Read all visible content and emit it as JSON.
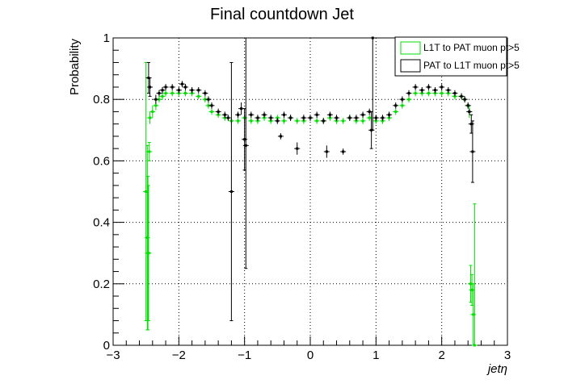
{
  "chart_data": {
    "type": "scatter",
    "title": "Final countdown Jet",
    "xlabel": "jetη",
    "ylabel": "Probability",
    "xlim": [
      -3,
      3
    ],
    "ylim": [
      0,
      1
    ],
    "x_ticks": [
      "−3",
      "−2",
      "−1",
      "0",
      "1",
      "2",
      "3"
    ],
    "y_ticks": [
      "0",
      "0.2",
      "0.4",
      "0.6",
      "0.8",
      "1"
    ],
    "grid": true,
    "legend_position": "top-right",
    "series": [
      {
        "name": "L1T to PAT muon pt>5",
        "color": "#00dd00",
        "points": [
          [
            -2.5,
            0.5,
            0.42
          ],
          [
            -2.48,
            0.35,
            0.3
          ],
          [
            -2.47,
            0.3,
            0.25
          ],
          [
            -2.46,
            0.3,
            0.22
          ],
          [
            -2.45,
            0.63,
            0.03
          ],
          [
            -2.44,
            0.74,
            0.02
          ],
          [
            -2.4,
            0.76,
            0.02
          ],
          [
            -2.35,
            0.78,
            0.015
          ],
          [
            -2.3,
            0.8,
            0.01
          ],
          [
            -2.25,
            0.81,
            0.01
          ],
          [
            -2.2,
            0.82,
            0.01
          ],
          [
            -2.1,
            0.82,
            0.01
          ],
          [
            -2.0,
            0.82,
            0.01
          ],
          [
            -1.9,
            0.82,
            0.01
          ],
          [
            -1.8,
            0.82,
            0.01
          ],
          [
            -1.7,
            0.81,
            0.01
          ],
          [
            -1.6,
            0.8,
            0.01
          ],
          [
            -1.55,
            0.78,
            0.01
          ],
          [
            -1.5,
            0.76,
            0.01
          ],
          [
            -1.4,
            0.75,
            0.01
          ],
          [
            -1.3,
            0.74,
            0.01
          ],
          [
            -1.2,
            0.73,
            0.01
          ],
          [
            -1.1,
            0.73,
            0.01
          ],
          [
            -1.0,
            0.74,
            0.01
          ],
          [
            -0.9,
            0.73,
            0.01
          ],
          [
            -0.8,
            0.73,
            0.01
          ],
          [
            -0.7,
            0.74,
            0.01
          ],
          [
            -0.6,
            0.73,
            0.01
          ],
          [
            -0.5,
            0.74,
            0.01
          ],
          [
            -0.4,
            0.73,
            0.01
          ],
          [
            -0.3,
            0.74,
            0.01
          ],
          [
            -0.2,
            0.73,
            0.01
          ],
          [
            -0.1,
            0.73,
            0.01
          ],
          [
            0.0,
            0.74,
            0.01
          ],
          [
            0.1,
            0.73,
            0.01
          ],
          [
            0.2,
            0.73,
            0.01
          ],
          [
            0.3,
            0.74,
            0.01
          ],
          [
            0.4,
            0.73,
            0.01
          ],
          [
            0.5,
            0.73,
            0.01
          ],
          [
            0.6,
            0.74,
            0.01
          ],
          [
            0.7,
            0.73,
            0.01
          ],
          [
            0.8,
            0.73,
            0.01
          ],
          [
            0.9,
            0.74,
            0.01
          ],
          [
            1.0,
            0.73,
            0.01
          ],
          [
            1.1,
            0.73,
            0.01
          ],
          [
            1.2,
            0.74,
            0.01
          ],
          [
            1.3,
            0.76,
            0.01
          ],
          [
            1.4,
            0.78,
            0.01
          ],
          [
            1.5,
            0.8,
            0.01
          ],
          [
            1.6,
            0.82,
            0.01
          ],
          [
            1.7,
            0.82,
            0.01
          ],
          [
            1.8,
            0.82,
            0.01
          ],
          [
            1.9,
            0.82,
            0.01
          ],
          [
            2.0,
            0.82,
            0.01
          ],
          [
            2.1,
            0.82,
            0.01
          ],
          [
            2.2,
            0.81,
            0.01
          ],
          [
            2.3,
            0.81,
            0.01
          ],
          [
            2.35,
            0.8,
            0.01
          ],
          [
            2.4,
            0.78,
            0.01
          ],
          [
            2.42,
            0.76,
            0.02
          ],
          [
            2.44,
            0.2,
            0.06
          ],
          [
            2.46,
            0.18,
            0.05
          ],
          [
            2.48,
            0.1,
            0.1
          ],
          [
            2.5,
            0.0,
            0.46
          ]
        ]
      },
      {
        "name": "PAT to L1T muon pt>5",
        "color": "#000000",
        "points": [
          [
            -2.46,
            0.87,
            0.05
          ],
          [
            -2.44,
            0.84,
            0.03
          ],
          [
            -2.35,
            0.8,
            0.015
          ],
          [
            -2.3,
            0.82,
            0.01
          ],
          [
            -2.25,
            0.83,
            0.01
          ],
          [
            -2.2,
            0.84,
            0.01
          ],
          [
            -2.1,
            0.84,
            0.01
          ],
          [
            -2.0,
            0.83,
            0.01
          ],
          [
            -1.95,
            0.85,
            0.01
          ],
          [
            -1.9,
            0.84,
            0.01
          ],
          [
            -1.8,
            0.83,
            0.01
          ],
          [
            -1.7,
            0.83,
            0.01
          ],
          [
            -1.6,
            0.82,
            0.01
          ],
          [
            -1.55,
            0.8,
            0.01
          ],
          [
            -1.5,
            0.78,
            0.01
          ],
          [
            -1.4,
            0.76,
            0.01
          ],
          [
            -1.3,
            0.75,
            0.01
          ],
          [
            -1.25,
            0.74,
            0.01
          ],
          [
            -1.2,
            0.5,
            0.42
          ],
          [
            -1.1,
            0.75,
            0.01
          ],
          [
            -1.05,
            0.77,
            0.02
          ],
          [
            -1.0,
            0.67,
            0.1
          ],
          [
            -0.98,
            0.65,
            0.4
          ],
          [
            -0.9,
            0.75,
            0.01
          ],
          [
            -0.8,
            0.74,
            0.01
          ],
          [
            -0.7,
            0.75,
            0.01
          ],
          [
            -0.6,
            0.74,
            0.01
          ],
          [
            -0.5,
            0.73,
            0.01
          ],
          [
            -0.45,
            0.68,
            0.01
          ],
          [
            -0.4,
            0.75,
            0.01
          ],
          [
            -0.3,
            0.74,
            0.01
          ],
          [
            -0.2,
            0.64,
            0.02
          ],
          [
            -0.1,
            0.74,
            0.01
          ],
          [
            0.0,
            0.74,
            0.01
          ],
          [
            0.1,
            0.75,
            0.01
          ],
          [
            0.2,
            0.73,
            0.01
          ],
          [
            0.25,
            0.63,
            0.02
          ],
          [
            0.3,
            0.75,
            0.01
          ],
          [
            0.4,
            0.74,
            0.01
          ],
          [
            0.5,
            0.63,
            0.01
          ],
          [
            0.6,
            0.74,
            0.01
          ],
          [
            0.7,
            0.74,
            0.01
          ],
          [
            0.8,
            0.75,
            0.01
          ],
          [
            0.9,
            0.76,
            0.01
          ],
          [
            0.93,
            0.7,
            0.06
          ],
          [
            0.95,
            1.0,
            0.3
          ],
          [
            1.0,
            0.74,
            0.01
          ],
          [
            1.1,
            0.74,
            0.01
          ],
          [
            1.2,
            0.75,
            0.01
          ],
          [
            1.3,
            0.78,
            0.01
          ],
          [
            1.4,
            0.8,
            0.01
          ],
          [
            1.5,
            0.82,
            0.01
          ],
          [
            1.6,
            0.84,
            0.01
          ],
          [
            1.7,
            0.83,
            0.01
          ],
          [
            1.8,
            0.84,
            0.01
          ],
          [
            1.9,
            0.83,
            0.01
          ],
          [
            2.0,
            0.84,
            0.01
          ],
          [
            2.1,
            0.83,
            0.01
          ],
          [
            2.2,
            0.82,
            0.01
          ],
          [
            2.3,
            0.81,
            0.01
          ],
          [
            2.35,
            0.8,
            0.01
          ],
          [
            2.4,
            0.78,
            0.01
          ],
          [
            2.42,
            0.76,
            0.01
          ],
          [
            2.45,
            0.72,
            0.03
          ],
          [
            2.47,
            0.63,
            0.1
          ]
        ]
      }
    ]
  }
}
